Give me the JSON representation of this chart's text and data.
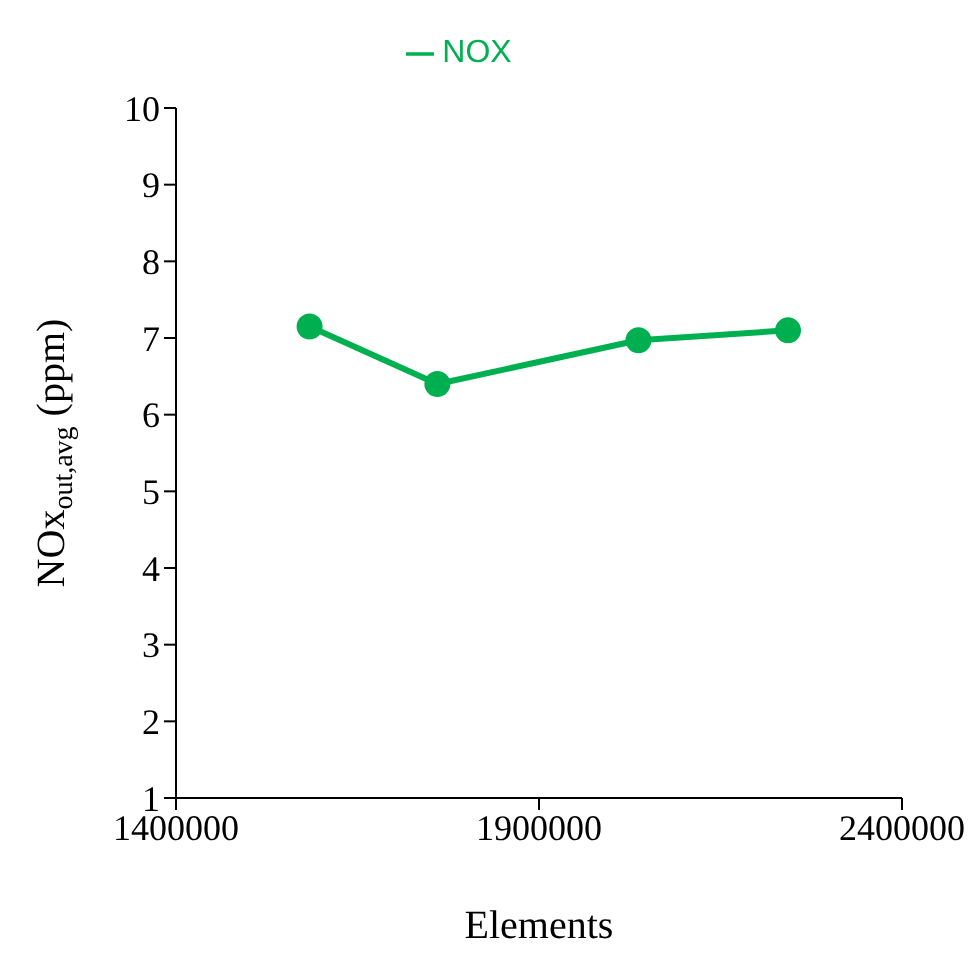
{
  "chart_data": {
    "type": "line",
    "xlabel": "Elements",
    "ylabel": "NOx$_{out,avg}$ (ppm)",
    "x": [
      1584000,
      1760000,
      2037000,
      2243000
    ],
    "series": [
      {
        "name": "NOX",
        "color": "#00b050",
        "values": [
          7.15,
          6.4,
          6.97,
          7.1
        ]
      }
    ],
    "xlim": [
      1400000,
      2400000
    ],
    "xticks": [
      1400000,
      1900000,
      2400000
    ],
    "ylim": [
      1,
      10
    ],
    "yticks": [
      1,
      2,
      3,
      4,
      5,
      6,
      7,
      8,
      9,
      10
    ],
    "grid": false,
    "legend": "top",
    "marker": "circle",
    "line_style": "solid"
  }
}
